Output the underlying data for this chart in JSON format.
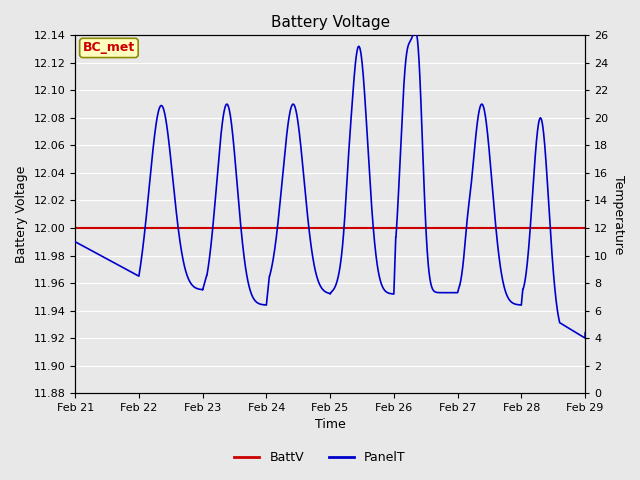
{
  "title": "Battery Voltage",
  "xlabel": "Time",
  "ylabel_left": "Battery Voltage",
  "ylabel_right": "Temperature",
  "ylim_left": [
    11.88,
    12.14
  ],
  "ylim_right": [
    0,
    26
  ],
  "yticks_left": [
    11.88,
    11.9,
    11.92,
    11.94,
    11.96,
    11.98,
    12.0,
    12.02,
    12.04,
    12.06,
    12.08,
    12.1,
    12.12,
    12.14
  ],
  "yticks_right": [
    0,
    2,
    4,
    6,
    8,
    10,
    12,
    14,
    16,
    18,
    20,
    22,
    24,
    26
  ],
  "xtick_labels": [
    "Feb 21",
    "Feb 22",
    "Feb 23",
    "Feb 24",
    "Feb 25",
    "Feb 26",
    "Feb 27",
    "Feb 28",
    "Feb 29"
  ],
  "bg_color": "#e8e8e8",
  "plot_bg_color": "#e8e8e8",
  "grid_color": "#ffffff",
  "batt_v_color": "#cc0000",
  "panel_t_color": "#0000cc",
  "batt_v_value": 12.0,
  "annotation_text": "BC_met",
  "annotation_bg": "#ffffc0",
  "annotation_border": "#8b8b00",
  "annotation_text_color": "#cc0000",
  "legend_battv": "BattV",
  "legend_panelt": "PanelT"
}
